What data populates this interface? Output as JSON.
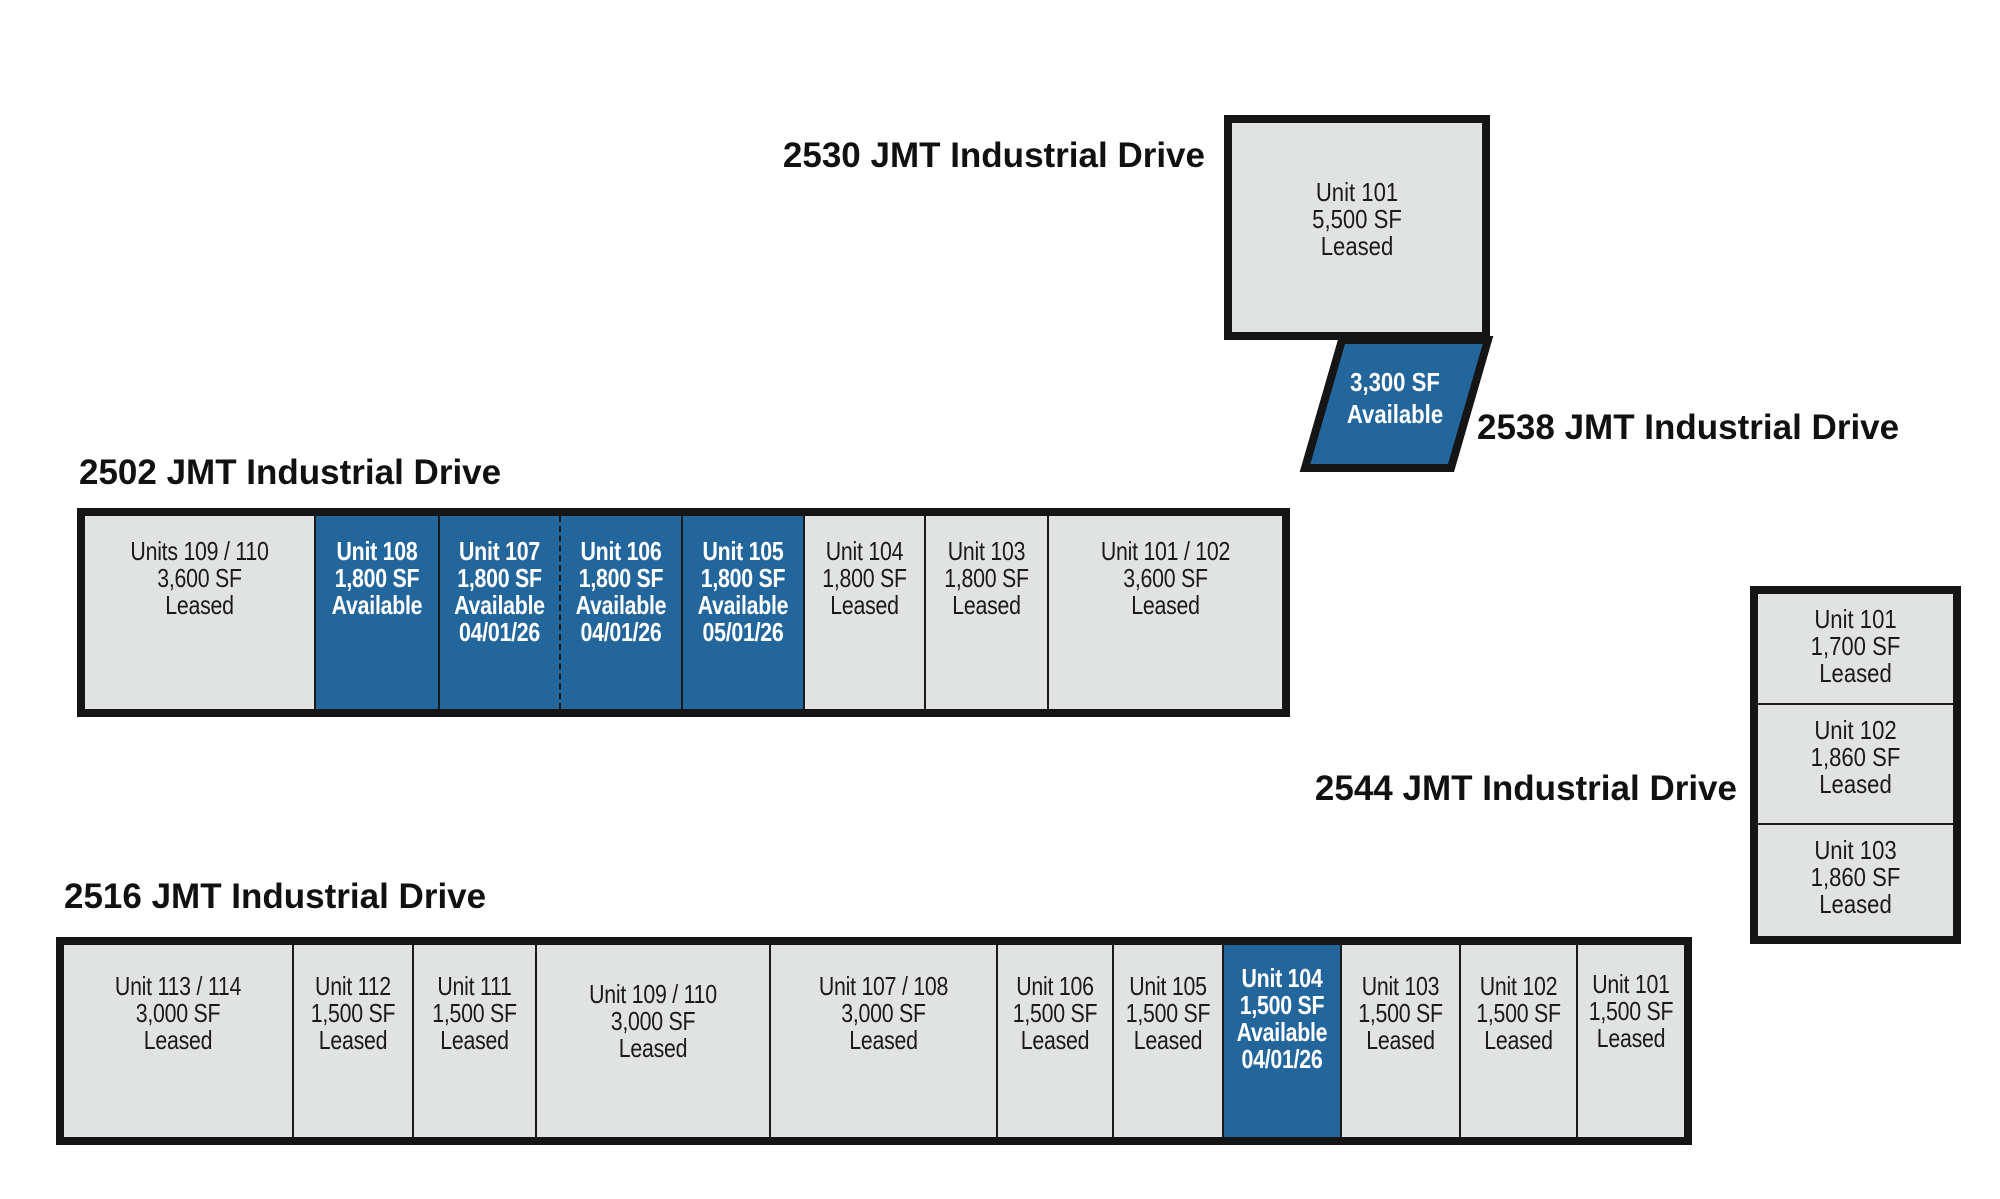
{
  "buildings": {
    "b2530": {
      "title": "2530 JMT Industrial Drive",
      "units": [
        {
          "lines": [
            "Unit 101",
            "5,500 SF",
            "Leased"
          ],
          "status": "leased"
        }
      ]
    },
    "b2538": {
      "title": "2538 JMT Industrial Drive",
      "units": [
        {
          "lines": [
            "3,300 SF",
            "Available"
          ],
          "status": "available"
        }
      ]
    },
    "b2502": {
      "title": "2502 JMT Industrial Drive",
      "units": [
        {
          "lines": [
            "Units 109 / 110",
            "3,600 SF",
            "Leased"
          ],
          "status": "leased"
        },
        {
          "lines": [
            "Unit 108",
            "1,800 SF",
            "Available"
          ],
          "status": "available"
        },
        {
          "lines": [
            "Unit 107",
            "1,800 SF",
            "Available",
            "04/01/26"
          ],
          "status": "available"
        },
        {
          "lines": [
            "Unit 106",
            "1,800 SF",
            "Available",
            "04/01/26"
          ],
          "status": "available"
        },
        {
          "lines": [
            "Unit 105",
            "1,800 SF",
            "Available",
            "05/01/26"
          ],
          "status": "available"
        },
        {
          "lines": [
            "Unit 104",
            "1,800 SF",
            "Leased"
          ],
          "status": "leased"
        },
        {
          "lines": [
            "Unit 103",
            "1,800 SF",
            "Leased"
          ],
          "status": "leased"
        },
        {
          "lines": [
            "Unit 101 / 102",
            "3,600 SF",
            "Leased"
          ],
          "status": "leased"
        }
      ]
    },
    "b2544": {
      "title": "2544 JMT Industrial Drive",
      "units": [
        {
          "lines": [
            "Unit 101",
            "1,700 SF",
            "Leased"
          ],
          "status": "leased"
        },
        {
          "lines": [
            "Unit 102",
            "1,860 SF",
            "Leased"
          ],
          "status": "leased"
        },
        {
          "lines": [
            "Unit 103",
            "1,860 SF",
            "Leased"
          ],
          "status": "leased"
        }
      ]
    },
    "b2516": {
      "title": "2516 JMT Industrial Drive",
      "units": [
        {
          "lines": [
            "Unit 113 / 114",
            "3,000 SF",
            "Leased"
          ],
          "status": "leased"
        },
        {
          "lines": [
            "Unit 112",
            "1,500 SF",
            "Leased"
          ],
          "status": "leased"
        },
        {
          "lines": [
            "Unit 111",
            "1,500 SF",
            "Leased"
          ],
          "status": "leased"
        },
        {
          "lines": [
            "Unit 109 / 110",
            "3,000 SF",
            "Leased"
          ],
          "status": "leased"
        },
        {
          "lines": [
            "Unit 107 / 108",
            "3,000 SF",
            "Leased"
          ],
          "status": "leased"
        },
        {
          "lines": [
            "Unit 106",
            "1,500 SF",
            "Leased"
          ],
          "status": "leased"
        },
        {
          "lines": [
            "Unit 105",
            "1,500 SF",
            "Leased"
          ],
          "status": "leased"
        },
        {
          "lines": [
            "Unit 104",
            "1,500 SF",
            "Available",
            "04/01/26"
          ],
          "status": "available"
        },
        {
          "lines": [
            "Unit 103",
            "1,500 SF",
            "Leased"
          ],
          "status": "leased"
        },
        {
          "lines": [
            "Unit 102",
            "1,500 SF",
            "Leased"
          ],
          "status": "leased"
        },
        {
          "lines": [
            "Unit 101",
            "1,500 SF",
            "Leased"
          ],
          "status": "leased"
        }
      ]
    }
  },
  "colors": {
    "available": "#23669c",
    "leased": "#e1e2e2",
    "outline": "#151515"
  }
}
